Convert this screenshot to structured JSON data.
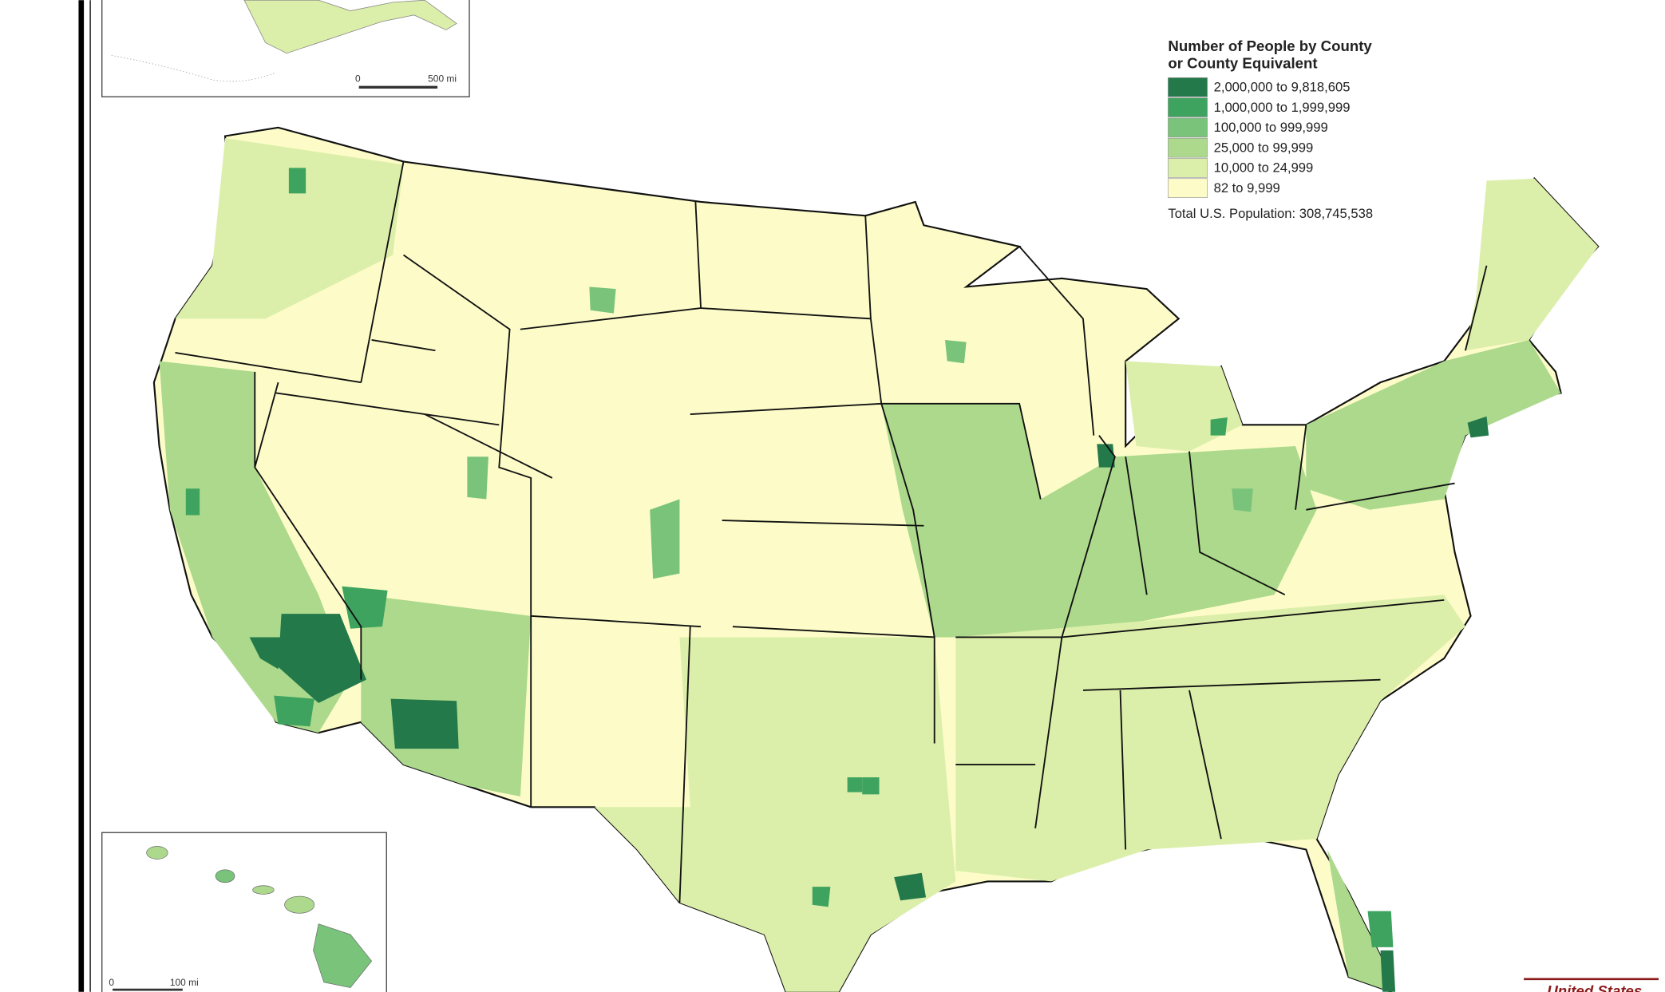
{
  "legend": {
    "title": [
      "Number of People by County",
      "or County Equivalent"
    ],
    "items": [
      {
        "label": "2,000,000 to 9,818,605",
        "color": "#23794a"
      },
      {
        "label": "1,000,000 to 1,999,999",
        "color": "#3ea35e"
      },
      {
        "label": "100,000 to 999,999",
        "color": "#79c47a"
      },
      {
        "label": "25,000 to 99,999",
        "color": "#acd98c"
      },
      {
        "label": "10,000 to 24,999",
        "color": "#dcefaa"
      },
      {
        "label": "82 to 9,999",
        "color": "#fdfcc9"
      }
    ],
    "total": "Total U.S. Population:  308,745,538"
  },
  "alaska_scale": {
    "start": "0",
    "end": "500 mi"
  },
  "hawaii_scale": {
    "start": "0",
    "end": "100 mi"
  },
  "logo": "United States"
}
